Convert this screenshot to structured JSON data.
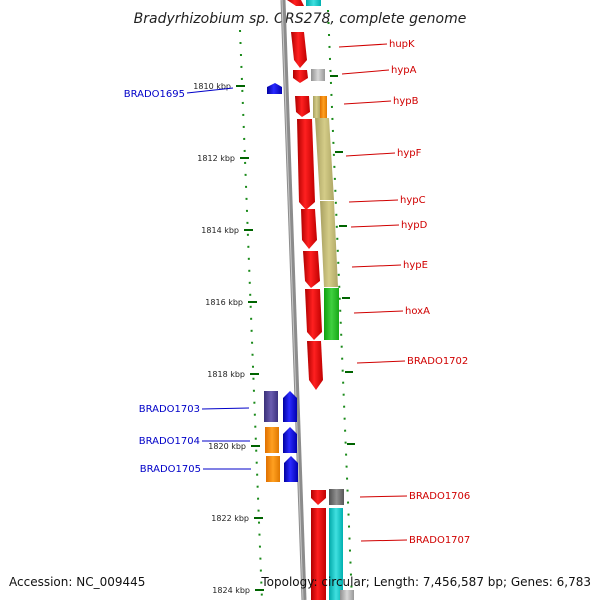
{
  "title": "Bradyrhizobium sp. ORS278, complete genome",
  "footer": {
    "accession": "Accession: NC_009445",
    "topology": "Topology: circular; Length: 7,456,587 bp; Genes: 6,783"
  },
  "ticks": [
    "1810 kbp",
    "1812 kbp",
    "1814 kbp",
    "1816 kbp",
    "1818 kbp",
    "1820 kbp",
    "1822 kbp",
    "1824 kbp"
  ],
  "gene_labels": {
    "hupK": "hupK",
    "hypA": "hypA",
    "hypB": "hypB",
    "hypF": "hypF",
    "hypC": "hypC",
    "hypD": "hypD",
    "hypE": "hypE",
    "hoxA": "hoxA",
    "brado1702": "BRADO1702",
    "brado1706": "BRADO1706",
    "brado1707": "BRADO1707",
    "brado1695": "BRADO1695",
    "brado1703": "BRADO1703",
    "brado1704": "BRADO1704",
    "brado1705": "BRADO1705"
  },
  "colors": {
    "forward_gene": "#ff0000",
    "reverse_gene": "#0000ff",
    "orf_orange": "#ff8c00",
    "orf_khaki": "#bdb76b",
    "orf_green": "#22bb22",
    "orf_navy": "#483d8b",
    "orf_cyan": "#00cccc",
    "orf_gray": "#a0a0a0",
    "orf_dark_gray": "#606060",
    "backbone": "#888888",
    "tick": "#006400"
  }
}
